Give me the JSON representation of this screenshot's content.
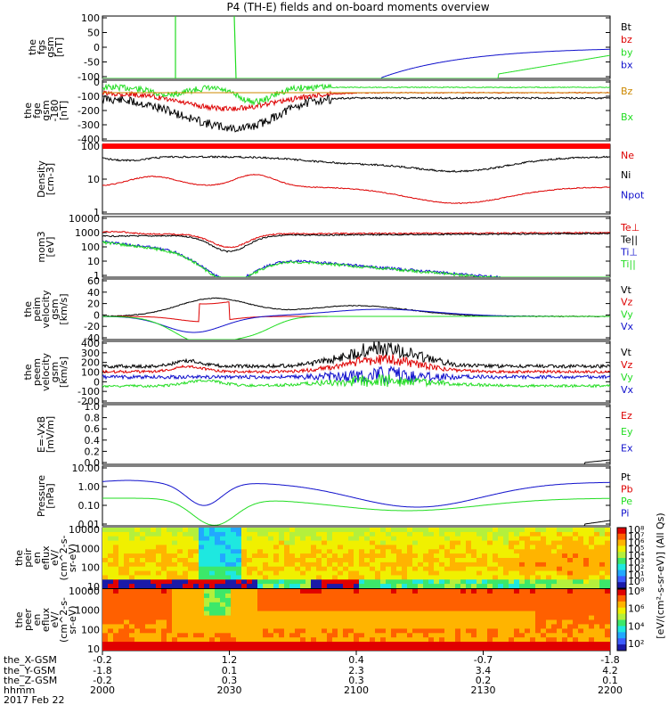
{
  "title": "P4 (TH-E) fields and on-board moments overview",
  "colors": {
    "black": "#000000",
    "red": "#dd0000",
    "green": "#22dd22",
    "blue": "#1010cc",
    "orange": "#cc8800"
  },
  "chart_data": [
    {
      "type": "line",
      "id": "fgs",
      "ylabel_lines": [
        "the",
        "fgs",
        "gsm",
        "[nT]"
      ],
      "yticks": [
        "100",
        "50",
        "0",
        "-50",
        "-100"
      ],
      "ylim": [
        -100,
        100
      ],
      "legend": [
        {
          "name": "Bt",
          "color": "black"
        },
        {
          "name": "bz",
          "color": "red"
        },
        {
          "name": "by",
          "color": "green"
        },
        {
          "name": "bx",
          "color": "blue"
        }
      ]
    },
    {
      "type": "line",
      "id": "fge",
      "ylabel_lines": [
        "the",
        "fge",
        "gsm",
        "-180",
        "[nT]"
      ],
      "yticks": [
        "0",
        "-100",
        "-200",
        "-300",
        "-400"
      ],
      "ylim": [
        -450,
        40
      ],
      "legend": [
        {
          "name": "Bz",
          "color": "orange"
        },
        {
          "name": "Bx",
          "color": "green"
        }
      ]
    },
    {
      "type": "line",
      "id": "density",
      "ylabel_lines": [
        "Density",
        "[cm-3]"
      ],
      "yticks": [
        "100",
        "10",
        "1"
      ],
      "ylim": [
        0.4,
        300
      ],
      "log": true,
      "legend": [
        {
          "name": "Ne",
          "color": "red"
        },
        {
          "name": "Ni",
          "color": "black"
        },
        {
          "name": "Npot",
          "color": "blue"
        }
      ]
    },
    {
      "type": "line",
      "id": "temp",
      "ylabel_lines": [
        "mom3",
        "[eV]"
      ],
      "yticks": [
        "10000",
        "1000",
        "100",
        "10",
        "1"
      ],
      "ylim": [
        1,
        10000
      ],
      "log": true,
      "legend": [
        {
          "name": "Te⊥",
          "color": "red"
        },
        {
          "name": "Te||",
          "color": "black"
        },
        {
          "name": "Ti⊥",
          "color": "blue"
        },
        {
          "name": "Ti||",
          "color": "green"
        }
      ]
    },
    {
      "type": "line",
      "id": "peim",
      "ylabel_lines": [
        "the",
        "peim",
        "velocity",
        "gsm",
        "[km/s]"
      ],
      "yticks": [
        "60",
        "40",
        "20",
        "0",
        "-20",
        "-40"
      ],
      "ylim": [
        -40,
        60
      ],
      "legend": [
        {
          "name": "Vt",
          "color": "black"
        },
        {
          "name": "Vz",
          "color": "red"
        },
        {
          "name": "Vy",
          "color": "green"
        },
        {
          "name": "Vx",
          "color": "blue"
        }
      ]
    },
    {
      "type": "line",
      "id": "peem",
      "ylabel_lines": [
        "the",
        "peem",
        "velocity",
        "gsm",
        "[km/s]"
      ],
      "yticks": [
        "400",
        "300",
        "200",
        "100",
        "0",
        "-100",
        "-200"
      ],
      "ylim": [
        -200,
        400
      ],
      "legend": [
        {
          "name": "Vt",
          "color": "black"
        },
        {
          "name": "Vz",
          "color": "red"
        },
        {
          "name": "Vy",
          "color": "green"
        },
        {
          "name": "Vx",
          "color": "blue"
        }
      ]
    },
    {
      "type": "line",
      "id": "efield",
      "ylabel_lines": [
        "E=-VxB",
        "[mV/m]"
      ],
      "yticks": [
        "1.0",
        "0.8",
        "0.6",
        "0.4",
        "0.2",
        "0.0"
      ],
      "ylim": [
        0,
        1
      ],
      "legend": [
        {
          "name": "Ez",
          "color": "red"
        },
        {
          "name": "Ey",
          "color": "green"
        },
        {
          "name": "Ex",
          "color": "blue"
        }
      ]
    },
    {
      "type": "line",
      "id": "pressure",
      "ylabel_lines": [
        "Pressure",
        "[nPa]"
      ],
      "yticks": [
        "10.00",
        "1.00",
        "0.10",
        "0.01"
      ],
      "ylim": [
        0.004,
        30
      ],
      "log": true,
      "legend": [
        {
          "name": "Pt",
          "color": "black"
        },
        {
          "name": "Pb",
          "color": "red"
        },
        {
          "name": "Pe",
          "color": "green"
        },
        {
          "name": "Pi",
          "color": "blue"
        }
      ]
    },
    {
      "type": "heatmap",
      "id": "peir",
      "ylabel_lines": [
        "the",
        "peir",
        "en",
        "eflux",
        "eV/",
        "(cm^2-s-",
        "sr-eV)"
      ],
      "yticks": [
        "10000",
        "1000",
        "100",
        "10"
      ],
      "colorbar_label": "[eV/(cm^2-s-sr-eV)] (All Qs)",
      "colorbar_ticks": [
        "10^8",
        "10^7",
        "10^6",
        "10^5",
        "10^4",
        "10^3",
        "10^2",
        "10^1",
        "10^0"
      ]
    },
    {
      "type": "heatmap",
      "id": "peer",
      "ylabel_lines": [
        "the",
        "peer",
        "en",
        "eflux",
        "eV/",
        "(cm^2-s-",
        "sr-eV)"
      ],
      "yticks": [
        "10000",
        "1000",
        "100",
        "10"
      ],
      "colorbar_label": "",
      "colorbar_ticks": [
        "10^8",
        "10^6",
        "10^4",
        "10^2"
      ]
    }
  ],
  "xaxis": {
    "row_labels": [
      "the_X-GSM",
      "the_Y-GSM",
      "the_Z-GSM",
      "hhmm",
      "2017 Feb 22"
    ],
    "columns": [
      [
        "-0.2",
        "-1.8",
        "-0.2",
        "2000"
      ],
      [
        "1.2",
        "0.1",
        "0.3",
        "2030"
      ],
      [
        "0.4",
        "2.3",
        "0.3",
        "2100"
      ],
      [
        "-0.7",
        "3.4",
        "0.2",
        "2130"
      ],
      [
        "-1.8",
        "4.2",
        "0.1",
        "2200"
      ]
    ]
  }
}
